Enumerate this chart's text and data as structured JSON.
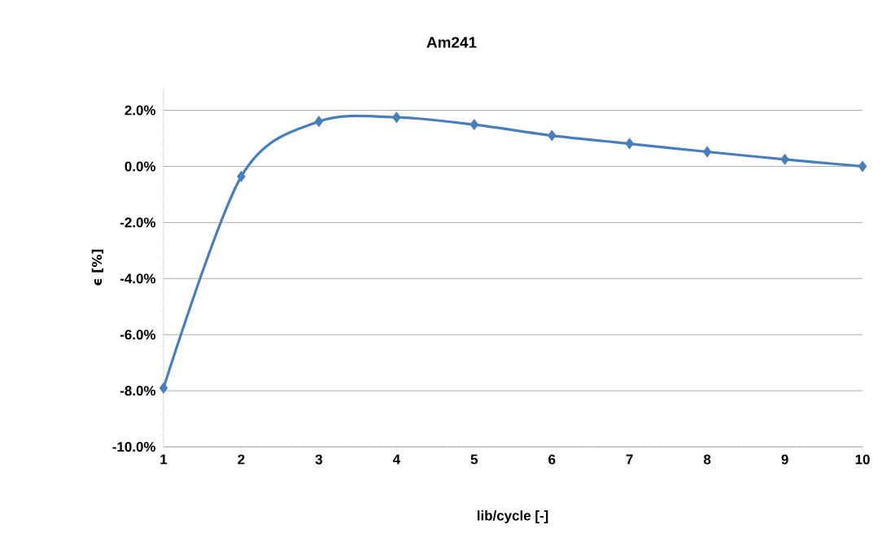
{
  "chart_data": {
    "type": "line",
    "title": "Am241",
    "xlabel": "lib/cycle [-]",
    "ylabel": "ϵ [%]",
    "x": [
      1,
      2,
      3,
      4,
      5,
      6,
      7,
      8,
      9,
      10
    ],
    "series": [
      {
        "color": "#4a7ebb",
        "values": [
          -7.9,
          -0.36,
          1.6,
          1.75,
          1.49,
          1.1,
          0.81,
          0.52,
          0.25,
          0.0
        ]
      }
    ],
    "xlim": [
      1,
      10
    ],
    "xticks": [
      1,
      2,
      3,
      4,
      5,
      6,
      7,
      8,
      9,
      10
    ],
    "ylim": [
      -10,
      2.8
    ],
    "yticks": [
      {
        "value": -10,
        "label": "-10.0%"
      },
      {
        "value": -8,
        "label": "-8.0%"
      },
      {
        "value": -6,
        "label": "-6.0%"
      },
      {
        "value": -4,
        "label": "-4.0%"
      },
      {
        "value": -2,
        "label": "-2.0%"
      },
      {
        "value": 0,
        "label": "0.0%"
      },
      {
        "value": 2,
        "label": "2.0%"
      }
    ],
    "grid": "y",
    "marker": "diamond",
    "line_style": "solid"
  }
}
